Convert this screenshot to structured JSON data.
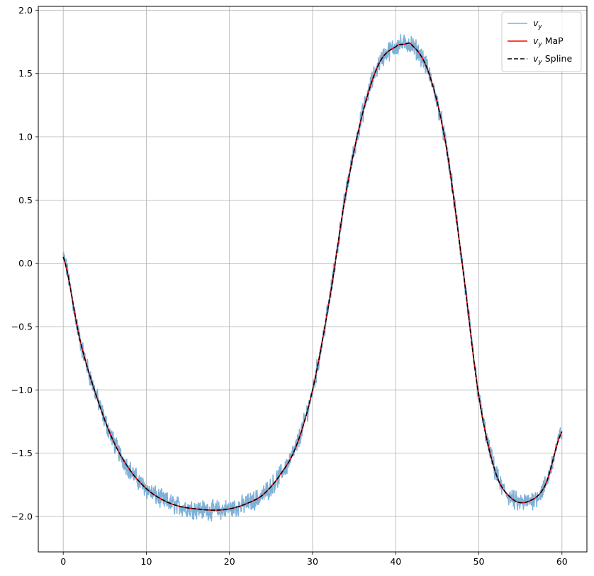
{
  "chart_data": {
    "type": "line",
    "title": "",
    "xlabel": "",
    "ylabel": "",
    "xlim": [
      -3,
      63
    ],
    "ylim": [
      -2.28,
      2.03
    ],
    "xticks": [
      0,
      10,
      20,
      30,
      40,
      50,
      60
    ],
    "yticks": [
      -2.0,
      -1.5,
      -1.0,
      -0.5,
      0.0,
      0.5,
      1.0,
      1.5,
      2.0
    ],
    "xtick_labels": [
      "0",
      "10",
      "20",
      "30",
      "40",
      "50",
      "60"
    ],
    "ytick_labels": [
      "−2.0",
      "−1.5",
      "−1.0",
      "−0.5",
      "0.0",
      "0.5",
      "1.0",
      "1.5",
      "2.0"
    ],
    "grid": true,
    "legend_position": "top-right",
    "x": [
      0,
      2,
      4,
      6,
      8,
      10,
      12,
      14,
      16,
      18,
      20,
      22,
      24,
      26,
      28,
      30,
      32,
      34,
      36,
      38,
      40,
      41,
      42,
      44,
      46,
      48,
      50,
      52,
      54,
      56,
      58,
      60
    ],
    "series": [
      {
        "name": "v_y",
        "legend_label": "v",
        "legend_sub": "y",
        "color": "#7fb1d8",
        "style": "noisy",
        "noise_amplitude": 0.06,
        "values": [
          0.05,
          -0.6,
          -1.05,
          -1.4,
          -1.63,
          -1.78,
          -1.87,
          -1.92,
          -1.94,
          -1.95,
          -1.94,
          -1.9,
          -1.83,
          -1.68,
          -1.45,
          -1.0,
          -0.3,
          0.55,
          1.18,
          1.58,
          1.71,
          1.73,
          1.72,
          1.5,
          0.95,
          0.0,
          -1.05,
          -1.65,
          -1.86,
          -1.88,
          -1.75,
          -1.33
        ]
      },
      {
        "name": "v_y MaP",
        "legend_label": "v",
        "legend_sub": "y",
        "legend_suffix": " MaP",
        "color": "#ff0000",
        "style": "solid",
        "values": [
          0.05,
          -0.6,
          -1.05,
          -1.4,
          -1.63,
          -1.78,
          -1.87,
          -1.92,
          -1.94,
          -1.95,
          -1.94,
          -1.9,
          -1.83,
          -1.68,
          -1.45,
          -1.0,
          -0.3,
          0.55,
          1.18,
          1.58,
          1.71,
          1.73,
          1.72,
          1.5,
          0.95,
          0.0,
          -1.05,
          -1.65,
          -1.86,
          -1.88,
          -1.75,
          -1.33
        ]
      },
      {
        "name": "v_y Spline",
        "legend_label": "v",
        "legend_sub": "y",
        "legend_suffix": " Spline",
        "color": "#000000",
        "style": "dashed",
        "values": [
          0.05,
          -0.6,
          -1.05,
          -1.4,
          -1.63,
          -1.78,
          -1.87,
          -1.92,
          -1.94,
          -1.95,
          -1.94,
          -1.9,
          -1.83,
          -1.68,
          -1.45,
          -1.0,
          -0.3,
          0.55,
          1.18,
          1.58,
          1.71,
          1.73,
          1.72,
          1.5,
          0.95,
          0.0,
          -1.05,
          -1.65,
          -1.86,
          -1.88,
          -1.75,
          -1.33
        ]
      }
    ]
  }
}
